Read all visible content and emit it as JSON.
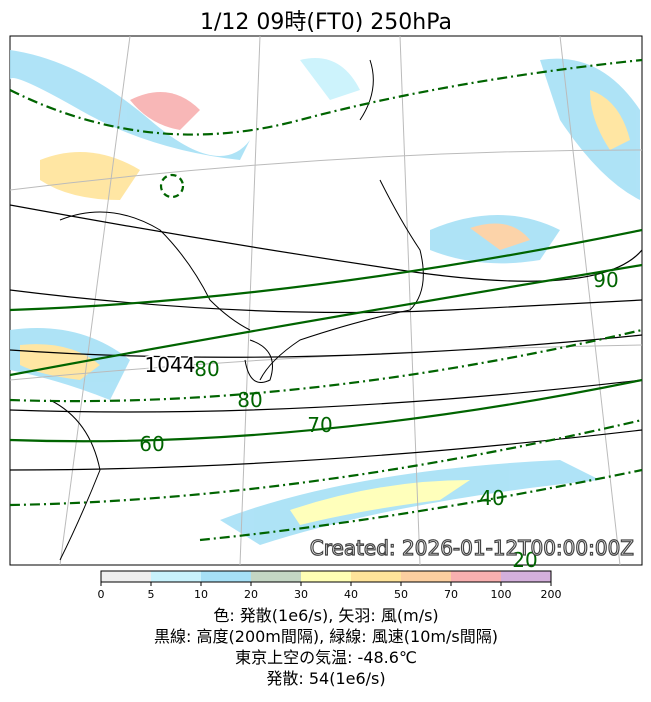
{
  "title": "1/12  09時(FT0)     250hPa",
  "contour_labels": {
    "height": [
      "1044"
    ],
    "wind": [
      "80",
      "90",
      "80",
      "70",
      "60",
      "40",
      "20"
    ]
  },
  "created": "Created: 2026-01-12T00:00:00Z",
  "colorbar": {
    "ticks": [
      0,
      5,
      10,
      20,
      30,
      40,
      50,
      70,
      100,
      200
    ],
    "colors": [
      "#eeeeee",
      "#c8f2fc",
      "#a6e0f6",
      "#c4d6c4",
      "#ffffb4",
      "#ffe49a",
      "#fccfa0",
      "#f8b0b0",
      "#d4b0dc"
    ]
  },
  "caption": [
    "色: 発散(1e6/s), 矢羽: 風(m/s)",
    "黒線: 高度(200m間隔), 緑線: 風速(10m/s間隔)",
    "東京上空の気温: -48.6℃",
    "発散: 54(1e6/s)"
  ]
}
